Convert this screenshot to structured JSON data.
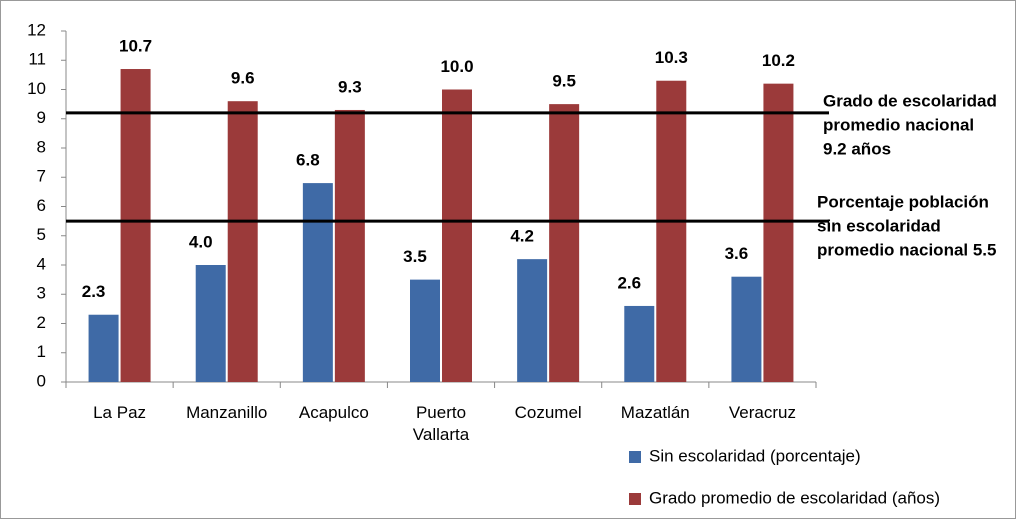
{
  "chart_data": {
    "type": "bar",
    "categories": [
      "La Paz",
      "Manzanillo",
      "Acapulco",
      "Puerto Vallarta",
      "Cozumel",
      "Mazatlán",
      "Veracruz"
    ],
    "series": [
      {
        "name": "Sin escolaridad (porcentaje)",
        "color": "#3f6aa6",
        "values": [
          2.3,
          4.0,
          6.8,
          3.5,
          4.2,
          2.6,
          3.6
        ],
        "value_labels": [
          "2.3",
          "4.0",
          "6.8",
          "3.5",
          "4.2",
          "2.6",
          "3.6"
        ]
      },
      {
        "name": "Grado promedio de escolaridad (años)",
        "color": "#9b3a3a",
        "values": [
          10.7,
          9.6,
          9.3,
          10.0,
          9.5,
          10.3,
          10.2
        ],
        "value_labels": [
          "10.7",
          "9.6",
          "9.3",
          "10.0",
          "9.5",
          "10.3",
          "10.2"
        ]
      }
    ],
    "ylim": [
      0,
      12
    ],
    "yticks": [
      0,
      1,
      2,
      3,
      4,
      5,
      6,
      7,
      8,
      9,
      10,
      11,
      12
    ],
    "reference_lines": [
      {
        "value": 9.2,
        "label_lines": [
          "Grado de escolaridad",
          "promedio nacional",
          "9.2 años"
        ]
      },
      {
        "value": 5.5,
        "label_lines": [
          "Porcentaje  población",
          "sin  escolaridad",
          "promedio nacional 5.5"
        ]
      }
    ]
  }
}
